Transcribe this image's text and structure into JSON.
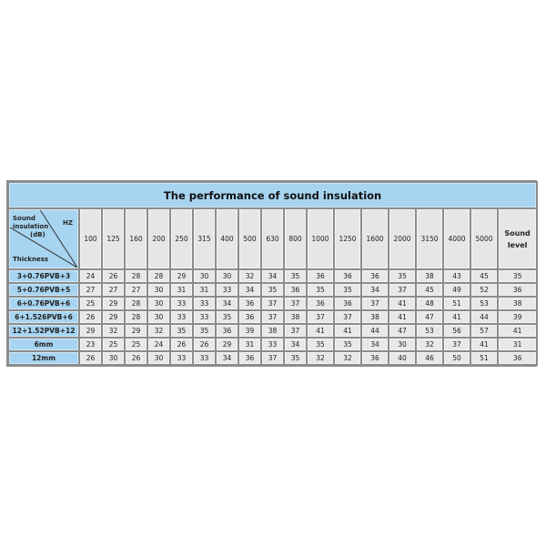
{
  "title": "The performance of sound insulation",
  "corner": {
    "line1": "Sound",
    "line2": "insulation",
    "line3": "(dB)",
    "hz": "HZ",
    "thickness": "Thickness"
  },
  "frequencies": [
    "100",
    "125",
    "160",
    "200",
    "250",
    "315",
    "400",
    "500",
    "630",
    "800",
    "1000",
    "1250",
    "1600",
    "2000",
    "3150",
    "4000",
    "5000"
  ],
  "sound_level_label": [
    "Sound",
    "level"
  ],
  "rows": [
    {
      "label": "3+0.76PVB+3",
      "values": [
        "24",
        "26",
        "28",
        "28",
        "29",
        "30",
        "30",
        "32",
        "34",
        "35",
        "36",
        "36",
        "36",
        "35",
        "38",
        "43",
        "45"
      ],
      "level": "35"
    },
    {
      "label": "5+0.76PVB+5",
      "values": [
        "27",
        "27",
        "27",
        "30",
        "31",
        "31",
        "33",
        "34",
        "35",
        "36",
        "35",
        "35",
        "34",
        "37",
        "45",
        "49",
        "52"
      ],
      "level": "36"
    },
    {
      "label": "6+0.76PVB+6",
      "values": [
        "25",
        "29",
        "28",
        "30",
        "33",
        "33",
        "34",
        "36",
        "37",
        "37",
        "36",
        "36",
        "37",
        "41",
        "48",
        "51",
        "53"
      ],
      "level": "38"
    },
    {
      "label": "6+1.526PVB+6",
      "values": [
        "26",
        "29",
        "28",
        "30",
        "33",
        "33",
        "35",
        "36",
        "37",
        "38",
        "37",
        "37",
        "38",
        "41",
        "47",
        "41",
        "44"
      ],
      "level": "39"
    },
    {
      "label": "12+1.52PVB+12",
      "values": [
        "29",
        "32",
        "29",
        "32",
        "35",
        "35",
        "36",
        "39",
        "38",
        "37",
        "41",
        "41",
        "44",
        "47",
        "53",
        "56",
        "57"
      ],
      "level": "41"
    },
    {
      "label": "6mm",
      "values": [
        "23",
        "25",
        "25",
        "24",
        "26",
        "26",
        "29",
        "31",
        "33",
        "34",
        "35",
        "35",
        "34",
        "30",
        "32",
        "37",
        "41"
      ],
      "level": "31"
    },
    {
      "label": "12mm",
      "values": [
        "26",
        "30",
        "26",
        "30",
        "33",
        "33",
        "34",
        "36",
        "37",
        "35",
        "32",
        "32",
        "36",
        "40",
        "46",
        "50",
        "51"
      ],
      "level": "36"
    }
  ],
  "colors": {
    "header_blue": "#a7d4f0",
    "cell_gray": "#e8e8e8",
    "border": "#8c8c8c"
  }
}
